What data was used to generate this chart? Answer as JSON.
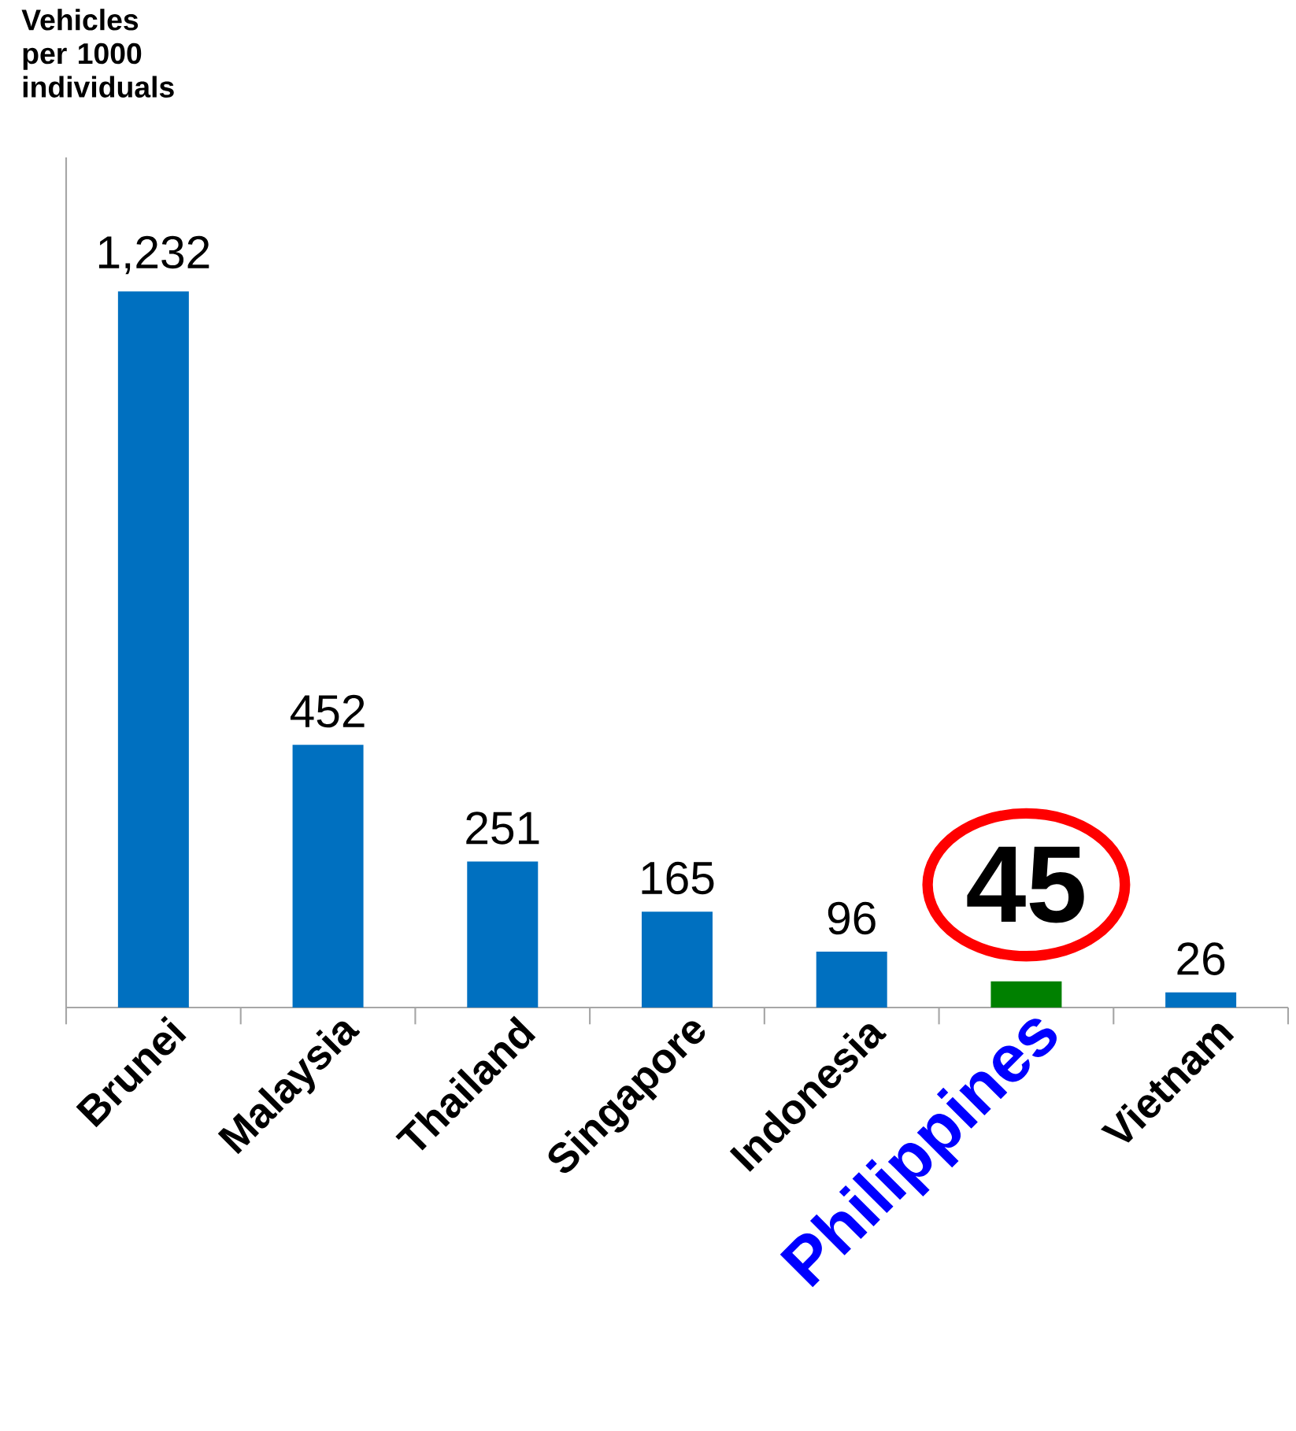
{
  "chart_data": {
    "type": "bar",
    "annotations": [
      "Vehicles per 1000 individuals"
    ],
    "categories": [
      "Brunei",
      "Malaysia",
      "Thailand",
      "Singapore",
      "Indonesia",
      "Philippines",
      "Vietnam"
    ],
    "values": [
      1232,
      452,
      251,
      165,
      96,
      45,
      26
    ],
    "colors": [
      "#0070c0",
      "#0070c0",
      "#0070c0",
      "#0070c0",
      "#0070c0",
      "#008000",
      "#0070c0"
    ],
    "value_labels": [
      "1,232",
      "452",
      "251",
      "165",
      "96",
      "45",
      "26"
    ]
  }
}
